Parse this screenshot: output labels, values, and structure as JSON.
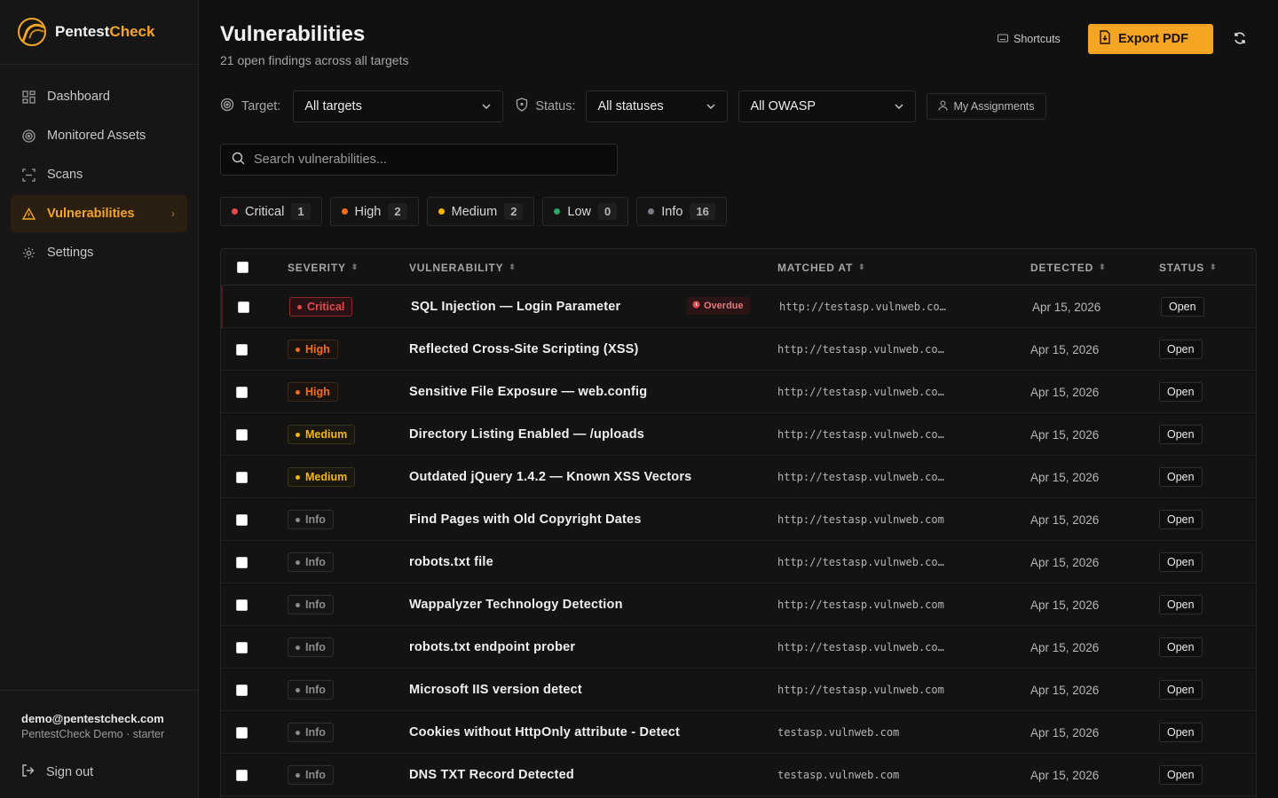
{
  "app": {
    "brand_first": "Pentest",
    "brand_second": "Check"
  },
  "sidebar": {
    "items": [
      {
        "label": "Dashboard",
        "icon": "grid-icon"
      },
      {
        "label": "Monitored Assets",
        "icon": "target-icon"
      },
      {
        "label": "Scans",
        "icon": "scan-icon"
      },
      {
        "label": "Vulnerabilities",
        "icon": "warning-icon",
        "active": true
      },
      {
        "label": "Settings",
        "icon": "gear-icon"
      }
    ],
    "user_email": "demo@pentestcheck.com",
    "user_plan": "PentestCheck Demo · starter",
    "signout_label": "Sign out"
  },
  "header": {
    "title": "Vulnerabilities",
    "subtitle": "21 open findings across all targets",
    "shortcuts_label": "Shortcuts",
    "export_label": "Export PDF"
  },
  "filters": {
    "target_label": "Target:",
    "target_value": "All targets",
    "status_label": "Status:",
    "status_value": "All statuses",
    "owasp_value": "All OWASP",
    "assignments_label": "My Assignments"
  },
  "search": {
    "placeholder": "Search vulnerabilities..."
  },
  "severity_pills": [
    {
      "label": "Critical",
      "count": "1",
      "color": "#e5484d"
    },
    {
      "label": "High",
      "count": "2",
      "color": "#f76b15"
    },
    {
      "label": "Medium",
      "count": "2",
      "color": "#f5b800"
    },
    {
      "label": "Low",
      "count": "0",
      "color": "#30a46c"
    },
    {
      "label": "Info",
      "count": "16",
      "color": "#7c7c80"
    }
  ],
  "table": {
    "columns": [
      "SEVERITY",
      "VULNERABILITY",
      "MATCHED AT",
      "DETECTED",
      "STATUS"
    ],
    "rows": [
      {
        "severity": "Critical",
        "name": "SQL Injection — Login Parameter",
        "badge": "Overdue",
        "matched": "http://testasp.vulnweb.co…",
        "detected": "Apr 15, 2026",
        "status": "Open"
      },
      {
        "severity": "High",
        "name": "Reflected Cross-Site Scripting (XSS)",
        "badge": "",
        "matched": "http://testasp.vulnweb.co…",
        "detected": "Apr 15, 2026",
        "status": "Open"
      },
      {
        "severity": "High",
        "name": "Sensitive File Exposure — web.config",
        "badge": "",
        "matched": "http://testasp.vulnweb.co…",
        "detected": "Apr 15, 2026",
        "status": "Open"
      },
      {
        "severity": "Medium",
        "name": "Directory Listing Enabled — /uploads",
        "badge": "",
        "matched": "http://testasp.vulnweb.co…",
        "detected": "Apr 15, 2026",
        "status": "Open"
      },
      {
        "severity": "Medium",
        "name": "Outdated jQuery 1.4.2 — Known XSS Vectors",
        "badge": "",
        "matched": "http://testasp.vulnweb.co…",
        "detected": "Apr 15, 2026",
        "status": "Open"
      },
      {
        "severity": "Info",
        "name": "Find Pages with Old Copyright Dates",
        "badge": "",
        "matched": "http://testasp.vulnweb.com",
        "detected": "Apr 15, 2026",
        "status": "Open"
      },
      {
        "severity": "Info",
        "name": "robots.txt file",
        "badge": "",
        "matched": "http://testasp.vulnweb.co…",
        "detected": "Apr 15, 2026",
        "status": "Open"
      },
      {
        "severity": "Info",
        "name": "Wappalyzer Technology Detection",
        "badge": "",
        "matched": "http://testasp.vulnweb.com",
        "detected": "Apr 15, 2026",
        "status": "Open"
      },
      {
        "severity": "Info",
        "name": "robots.txt endpoint prober",
        "badge": "",
        "matched": "http://testasp.vulnweb.co…",
        "detected": "Apr 15, 2026",
        "status": "Open"
      },
      {
        "severity": "Info",
        "name": "Microsoft IIS version detect",
        "badge": "",
        "matched": "http://testasp.vulnweb.com",
        "detected": "Apr 15, 2026",
        "status": "Open"
      },
      {
        "severity": "Info",
        "name": "Cookies without HttpOnly attribute - Detect",
        "badge": "",
        "matched": "testasp.vulnweb.com",
        "detected": "Apr 15, 2026",
        "status": "Open"
      },
      {
        "severity": "Info",
        "name": "DNS TXT Record Detected",
        "badge": "",
        "matched": "testasp.vulnweb.com",
        "detected": "Apr 15, 2026",
        "status": "Open"
      }
    ]
  },
  "colors": {
    "accent": "#f5a524",
    "critical": "#e5484d",
    "high": "#f76b15",
    "medium": "#f5b800",
    "info": "#7c7c80"
  }
}
